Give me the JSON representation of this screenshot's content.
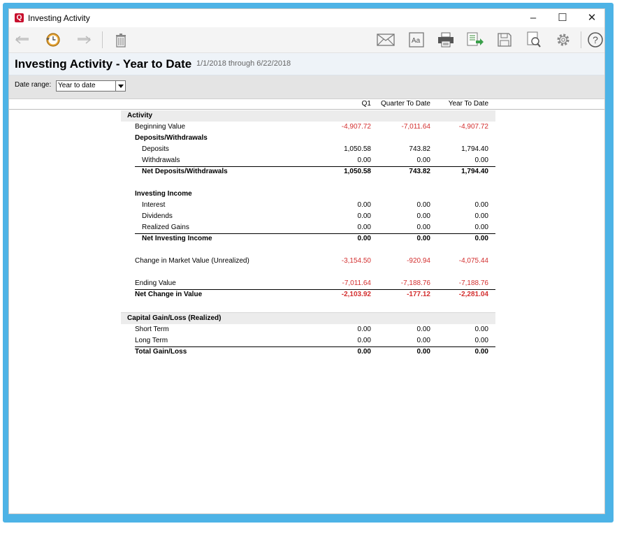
{
  "window": {
    "title": "Investing Activity",
    "app_icon_letter": "Q",
    "minimize": "–",
    "maximize": "☐",
    "close": "✕"
  },
  "toolbar": {
    "icons": [
      "back-arrow-icon",
      "history-clock-icon",
      "forward-arrow-icon",
      "trash-icon",
      "email-icon",
      "font-icon",
      "print-icon",
      "export-icon",
      "save-icon",
      "print-preview-icon",
      "settings-gear-icon",
      "help-icon"
    ],
    "help_glyph": "?"
  },
  "report": {
    "title": "Investing Activity - Year to Date",
    "date_range_text": "1/1/2018 through 6/22/2018",
    "accent_negative": "#d32f2f"
  },
  "filter": {
    "date_range_label": "Date range:",
    "date_range_value": "Year to date"
  },
  "columns": [
    "Q1",
    "Quarter To Date",
    "Year To Date"
  ],
  "rows": {
    "activity": "Activity",
    "beginning_value": {
      "label": "Beginning Value",
      "values": [
        "-4,907.72",
        "-7,011.64",
        "-4,907.72"
      ]
    },
    "deposits_withdrawals": "Deposits/Withdrawals",
    "deposits": {
      "label": "Deposits",
      "values": [
        "1,050.58",
        "743.82",
        "1,794.40"
      ]
    },
    "withdrawals": {
      "label": "Withdrawals",
      "values": [
        "0.00",
        "0.00",
        "0.00"
      ]
    },
    "net_deposits": {
      "label": "Net Deposits/Withdrawals",
      "values": [
        "1,050.58",
        "743.82",
        "1,794.40"
      ]
    },
    "investing_income": "Investing Income",
    "interest": {
      "label": "Interest",
      "values": [
        "0.00",
        "0.00",
        "0.00"
      ]
    },
    "dividends": {
      "label": "Dividends",
      "values": [
        "0.00",
        "0.00",
        "0.00"
      ]
    },
    "realized_gains": {
      "label": "Realized Gains",
      "values": [
        "0.00",
        "0.00",
        "0.00"
      ]
    },
    "net_investing_income": {
      "label": "Net Investing Income",
      "values": [
        "0.00",
        "0.00",
        "0.00"
      ]
    },
    "change_market": {
      "label": "Change in Market Value (Unrealized)",
      "values": [
        "-3,154.50",
        "-920.94",
        "-4,075.44"
      ]
    },
    "ending_value": {
      "label": "Ending Value",
      "values": [
        "-7,011.64",
        "-7,188.76",
        "-7,188.76"
      ]
    },
    "net_change": {
      "label": "Net Change in Value",
      "values": [
        "-2,103.92",
        "-177.12",
        "-2,281.04"
      ]
    },
    "capital_gain": "Capital Gain/Loss (Realized)",
    "short_term": {
      "label": "Short Term",
      "values": [
        "0.00",
        "0.00",
        "0.00"
      ]
    },
    "long_term": {
      "label": "Long Term",
      "values": [
        "0.00",
        "0.00",
        "0.00"
      ]
    },
    "total_gain": {
      "label": "Total Gain/Loss",
      "values": [
        "0.00",
        "0.00",
        "0.00"
      ]
    }
  }
}
